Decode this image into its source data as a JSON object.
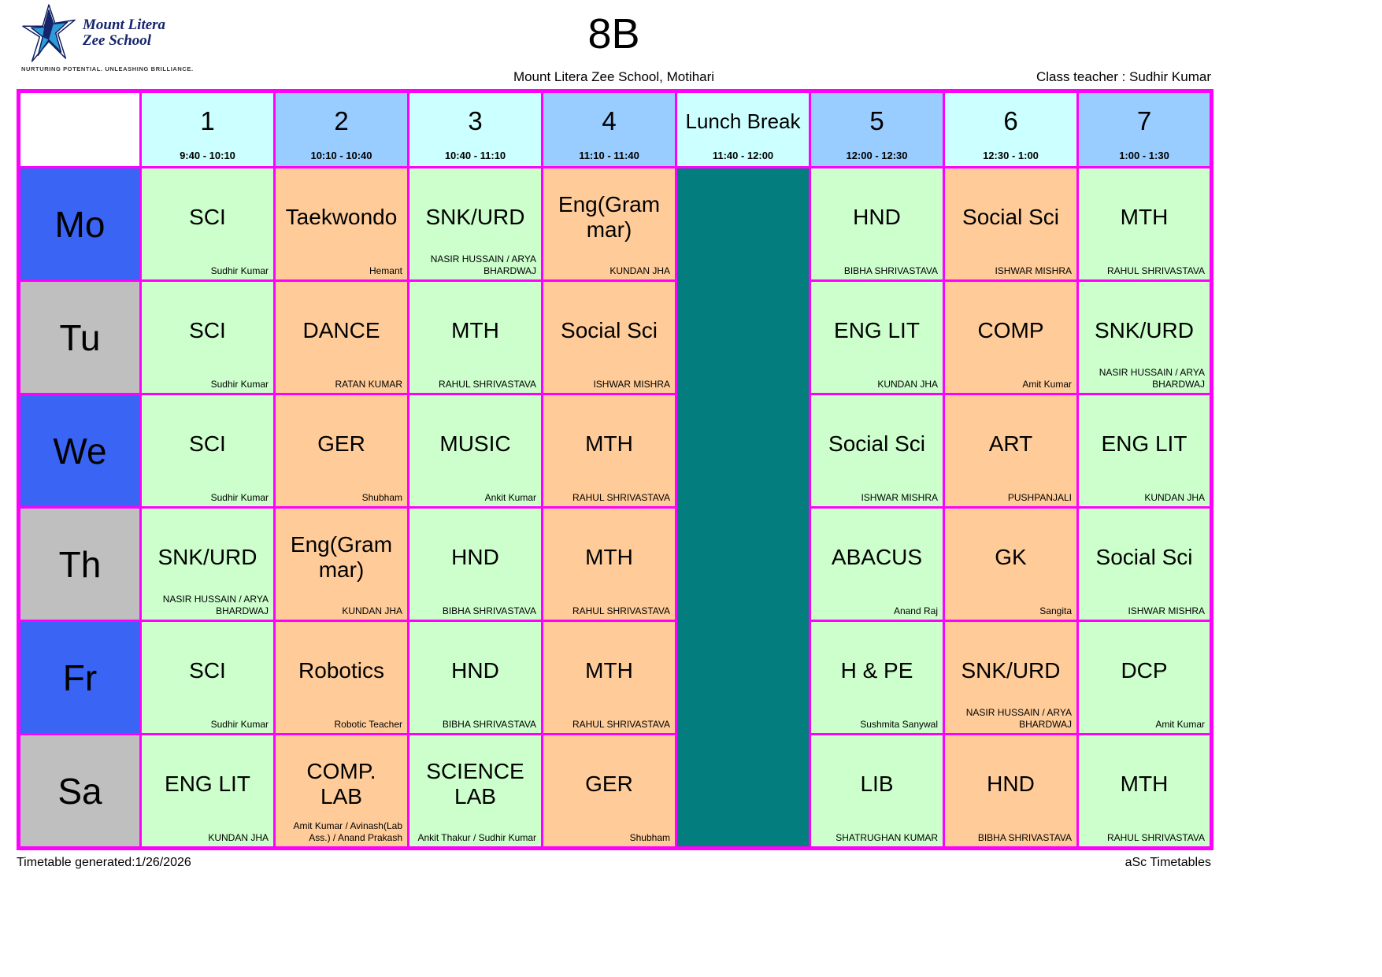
{
  "palette": {
    "green": "#ccffcc",
    "orange": "#ffcc99",
    "teal": "#037d7e",
    "blue": "#3a64f4",
    "gray": "#bfbfbf",
    "cyan_header": "#ccffff",
    "blue_header": "#99ccff",
    "border": "#ff00ff",
    "white": "#ffffff"
  },
  "logo": {
    "line1": "Mount Litera",
    "line2": "Zee School",
    "tagline": "NURTURING POTENTIAL. UNLEASHING BRILLIANCE."
  },
  "header": {
    "title": "8B",
    "school": "Mount Litera Zee School, Motihari",
    "class_teacher": "Class teacher : Sudhir Kumar"
  },
  "periods": [
    {
      "label": "1",
      "time": "9:40 - 10:10",
      "header_bg": "cyan_header",
      "is_lunch": false
    },
    {
      "label": "2",
      "time": "10:10 - 10:40",
      "header_bg": "blue_header",
      "is_lunch": false
    },
    {
      "label": "3",
      "time": "10:40 - 11:10",
      "header_bg": "cyan_header",
      "is_lunch": false
    },
    {
      "label": "4",
      "time": "11:10 - 11:40",
      "header_bg": "blue_header",
      "is_lunch": false
    },
    {
      "label": "Lunch Break",
      "time": "11:40 - 12:00",
      "header_bg": "cyan_header",
      "is_lunch": true
    },
    {
      "label": "5",
      "time": "12:00 - 12:30",
      "header_bg": "blue_header",
      "is_lunch": false
    },
    {
      "label": "6",
      "time": "12:30 - 1:00",
      "header_bg": "cyan_header",
      "is_lunch": false
    },
    {
      "label": "7",
      "time": "1:00 - 1:30",
      "header_bg": "blue_header",
      "is_lunch": false
    }
  ],
  "days": [
    {
      "label": "Mo",
      "label_bg": "blue",
      "cells": [
        {
          "subject": "SCI",
          "teacher": "Sudhir Kumar",
          "bg": "green"
        },
        {
          "subject": "Taekwondo",
          "teacher": "Hemant",
          "bg": "orange"
        },
        {
          "subject": "SNK/URD",
          "teacher": "NASIR HUSSAIN / ARYA BHARDWAJ",
          "bg": "green"
        },
        {
          "subject": "Eng(Grammar)",
          "teacher": "KUNDAN JHA",
          "bg": "orange"
        },
        {
          "subject": "HND",
          "teacher": "BIBHA SHRIVASTAVA",
          "bg": "green"
        },
        {
          "subject": "Social Sci",
          "teacher": "ISHWAR MISHRA",
          "bg": "orange"
        },
        {
          "subject": "MTH",
          "teacher": "RAHUL SHRIVASTAVA",
          "bg": "green"
        }
      ]
    },
    {
      "label": "Tu",
      "label_bg": "gray",
      "cells": [
        {
          "subject": "SCI",
          "teacher": "Sudhir Kumar",
          "bg": "green"
        },
        {
          "subject": "DANCE",
          "teacher": "RATAN KUMAR",
          "bg": "orange"
        },
        {
          "subject": "MTH",
          "teacher": "RAHUL SHRIVASTAVA",
          "bg": "green"
        },
        {
          "subject": "Social Sci",
          "teacher": "ISHWAR MISHRA",
          "bg": "orange"
        },
        {
          "subject": "ENG LIT",
          "teacher": "KUNDAN JHA",
          "bg": "green"
        },
        {
          "subject": "COMP",
          "teacher": "Amit Kumar",
          "bg": "orange"
        },
        {
          "subject": "SNK/URD",
          "teacher": "NASIR HUSSAIN / ARYA BHARDWAJ",
          "bg": "green"
        }
      ]
    },
    {
      "label": "We",
      "label_bg": "blue",
      "cells": [
        {
          "subject": "SCI",
          "teacher": "Sudhir Kumar",
          "bg": "green"
        },
        {
          "subject": "GER",
          "teacher": "Shubham",
          "bg": "orange"
        },
        {
          "subject": "MUSIC",
          "teacher": "Ankit Kumar",
          "bg": "green"
        },
        {
          "subject": "MTH",
          "teacher": "RAHUL SHRIVASTAVA",
          "bg": "orange"
        },
        {
          "subject": "Social Sci",
          "teacher": "ISHWAR MISHRA",
          "bg": "green"
        },
        {
          "subject": "ART",
          "teacher": "PUSHPANJALI",
          "bg": "orange"
        },
        {
          "subject": "ENG LIT",
          "teacher": "KUNDAN JHA",
          "bg": "green"
        }
      ]
    },
    {
      "label": "Th",
      "label_bg": "gray",
      "cells": [
        {
          "subject": "SNK/URD",
          "teacher": "NASIR HUSSAIN / ARYA BHARDWAJ",
          "bg": "green"
        },
        {
          "subject": "Eng(Grammar)",
          "teacher": "KUNDAN JHA",
          "bg": "orange"
        },
        {
          "subject": "HND",
          "teacher": "BIBHA SHRIVASTAVA",
          "bg": "green"
        },
        {
          "subject": "MTH",
          "teacher": "RAHUL SHRIVASTAVA",
          "bg": "orange"
        },
        {
          "subject": "ABACUS",
          "teacher": "Anand Raj",
          "bg": "green"
        },
        {
          "subject": "GK",
          "teacher": "Sangita",
          "bg": "orange"
        },
        {
          "subject": "Social Sci",
          "teacher": "ISHWAR MISHRA",
          "bg": "green"
        }
      ]
    },
    {
      "label": "Fr",
      "label_bg": "blue",
      "cells": [
        {
          "subject": "SCI",
          "teacher": "Sudhir Kumar",
          "bg": "green"
        },
        {
          "subject": "Robotics",
          "teacher": "Robotic Teacher",
          "bg": "orange"
        },
        {
          "subject": "HND",
          "teacher": "BIBHA SHRIVASTAVA",
          "bg": "green"
        },
        {
          "subject": "MTH",
          "teacher": "RAHUL SHRIVASTAVA",
          "bg": "orange"
        },
        {
          "subject": "H & PE",
          "teacher": "Sushmita Sanywal",
          "bg": "green"
        },
        {
          "subject": "SNK/URD",
          "teacher": "NASIR HUSSAIN / ARYA BHARDWAJ",
          "bg": "orange"
        },
        {
          "subject": "DCP",
          "teacher": "Amit Kumar",
          "bg": "green"
        }
      ]
    },
    {
      "label": "Sa",
      "label_bg": "gray",
      "cells": [
        {
          "subject": "ENG LIT",
          "teacher": "KUNDAN JHA",
          "bg": "green"
        },
        {
          "subject": "COMP. LAB",
          "teacher": "Amit Kumar / Avinash(Lab Ass.) / Anand Prakash",
          "bg": "orange"
        },
        {
          "subject": "SCIENCE LAB",
          "teacher": "Ankit Thakur / Sudhir Kumar",
          "bg": "green"
        },
        {
          "subject": "GER",
          "teacher": "Shubham",
          "bg": "orange"
        },
        {
          "subject": "LIB",
          "teacher": "SHATRUGHAN KUMAR",
          "bg": "green"
        },
        {
          "subject": "HND",
          "teacher": "BIBHA SHRIVASTAVA",
          "bg": "orange"
        },
        {
          "subject": "MTH",
          "teacher": "RAHUL SHRIVASTAVA",
          "bg": "green"
        }
      ]
    }
  ],
  "footer": {
    "left": "Timetable generated:1/26/2026",
    "right": "aSc Timetables"
  }
}
